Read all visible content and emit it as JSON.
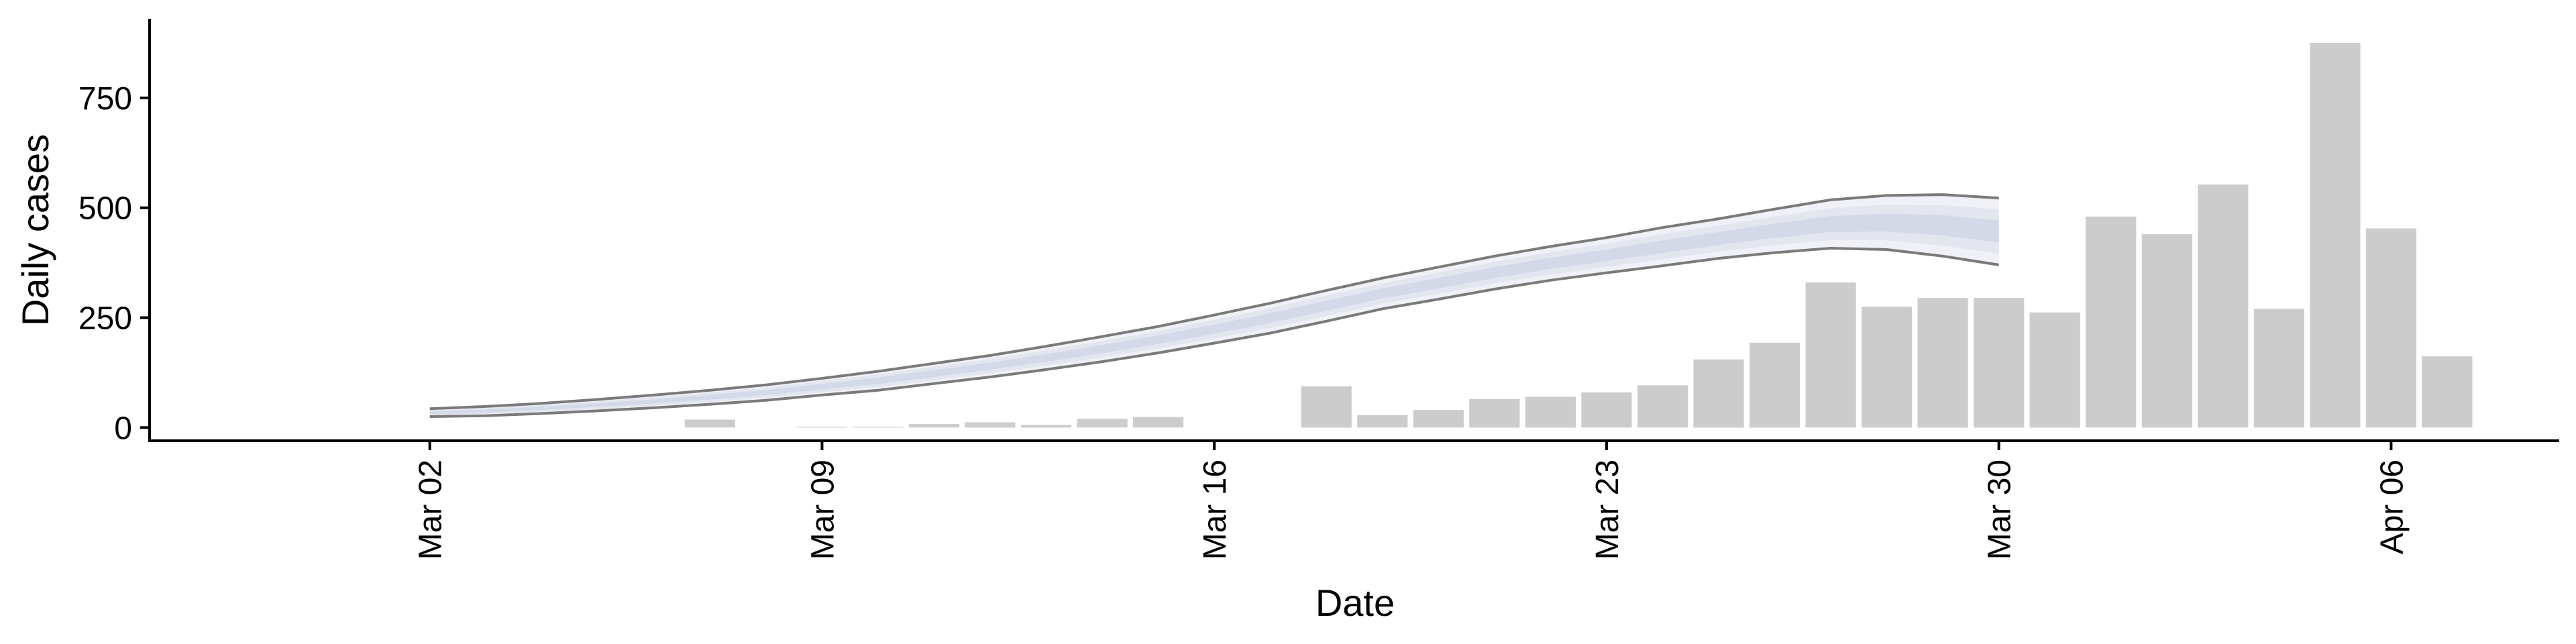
{
  "chart_data": {
    "type": "bar",
    "xlabel": "Date",
    "ylabel": "Daily cases",
    "ylim": [
      -30,
      930
    ],
    "x_range": [
      "2020-02-26",
      "2020-04-09"
    ],
    "y_ticks": [
      0,
      250,
      500,
      750
    ],
    "y_tick_labels": [
      "0",
      "250",
      "500",
      "750"
    ],
    "x_ticks": [
      "2020-03-02",
      "2020-03-09",
      "2020-03-16",
      "2020-03-23",
      "2020-03-30",
      "2020-04-06"
    ],
    "x_tick_labels": [
      "Mar 02",
      "Mar 09",
      "Mar 16",
      "Mar 23",
      "Mar 30",
      "Apr 06"
    ],
    "bars": [
      {
        "date": "2020-03-07",
        "value": 18
      },
      {
        "date": "2020-03-09",
        "value": 2
      },
      {
        "date": "2020-03-10",
        "value": 2
      },
      {
        "date": "2020-03-11",
        "value": 8
      },
      {
        "date": "2020-03-12",
        "value": 12
      },
      {
        "date": "2020-03-13",
        "value": 6
      },
      {
        "date": "2020-03-14",
        "value": 20
      },
      {
        "date": "2020-03-15",
        "value": 24
      },
      {
        "date": "2020-03-18",
        "value": 94
      },
      {
        "date": "2020-03-19",
        "value": 28
      },
      {
        "date": "2020-03-20",
        "value": 40
      },
      {
        "date": "2020-03-21",
        "value": 65
      },
      {
        "date": "2020-03-22",
        "value": 70
      },
      {
        "date": "2020-03-23",
        "value": 80
      },
      {
        "date": "2020-03-24",
        "value": 96
      },
      {
        "date": "2020-03-25",
        "value": 155
      },
      {
        "date": "2020-03-26",
        "value": 193
      },
      {
        "date": "2020-03-27",
        "value": 330
      },
      {
        "date": "2020-03-28",
        "value": 275
      },
      {
        "date": "2020-03-29",
        "value": 295
      },
      {
        "date": "2020-03-30",
        "value": 295
      },
      {
        "date": "2020-03-31",
        "value": 262
      },
      {
        "date": "2020-04-01",
        "value": 480
      },
      {
        "date": "2020-04-02",
        "value": 440
      },
      {
        "date": "2020-04-03",
        "value": 553
      },
      {
        "date": "2020-04-04",
        "value": 270
      },
      {
        "date": "2020-04-05",
        "value": 875
      },
      {
        "date": "2020-04-06",
        "value": 453
      },
      {
        "date": "2020-04-07",
        "value": 162
      }
    ],
    "band": [
      {
        "date": "2020-03-02",
        "lower": 25,
        "upper": 43
      },
      {
        "date": "2020-03-03",
        "lower": 27,
        "upper": 48
      },
      {
        "date": "2020-03-04",
        "lower": 32,
        "upper": 55
      },
      {
        "date": "2020-03-05",
        "lower": 38,
        "upper": 64
      },
      {
        "date": "2020-03-06",
        "lower": 45,
        "upper": 74
      },
      {
        "date": "2020-03-07",
        "lower": 53,
        "upper": 85
      },
      {
        "date": "2020-03-08",
        "lower": 62,
        "upper": 97
      },
      {
        "date": "2020-03-09",
        "lower": 74,
        "upper": 112
      },
      {
        "date": "2020-03-10",
        "lower": 85,
        "upper": 128
      },
      {
        "date": "2020-03-11",
        "lower": 100,
        "upper": 146
      },
      {
        "date": "2020-03-12",
        "lower": 115,
        "upper": 164
      },
      {
        "date": "2020-03-13",
        "lower": 132,
        "upper": 185
      },
      {
        "date": "2020-03-14",
        "lower": 150,
        "upper": 207
      },
      {
        "date": "2020-03-15",
        "lower": 170,
        "upper": 230
      },
      {
        "date": "2020-03-16",
        "lower": 192,
        "upper": 256
      },
      {
        "date": "2020-03-17",
        "lower": 215,
        "upper": 283
      },
      {
        "date": "2020-03-18",
        "lower": 242,
        "upper": 312
      },
      {
        "date": "2020-03-19",
        "lower": 270,
        "upper": 340
      },
      {
        "date": "2020-03-20",
        "lower": 292,
        "upper": 365
      },
      {
        "date": "2020-03-21",
        "lower": 315,
        "upper": 390
      },
      {
        "date": "2020-03-22",
        "lower": 335,
        "upper": 412
      },
      {
        "date": "2020-03-23",
        "lower": 352,
        "upper": 432
      },
      {
        "date": "2020-03-24",
        "lower": 368,
        "upper": 455
      },
      {
        "date": "2020-03-25",
        "lower": 385,
        "upper": 475
      },
      {
        "date": "2020-03-26",
        "lower": 398,
        "upper": 497
      },
      {
        "date": "2020-03-27",
        "lower": 408,
        "upper": 518
      },
      {
        "date": "2020-03-28",
        "lower": 405,
        "upper": 528
      },
      {
        "date": "2020-03-29",
        "lower": 390,
        "upper": 530
      },
      {
        "date": "2020-03-30",
        "lower": 370,
        "upper": 522
      }
    ],
    "colors": {
      "bar": "#cccccc",
      "band_outer": "#f0f1f6",
      "band_mid": "#e3e6ef",
      "band_inner": "#d4d9e8",
      "band_edge": "#7a7a7a"
    },
    "grid": false,
    "legend": "none"
  }
}
